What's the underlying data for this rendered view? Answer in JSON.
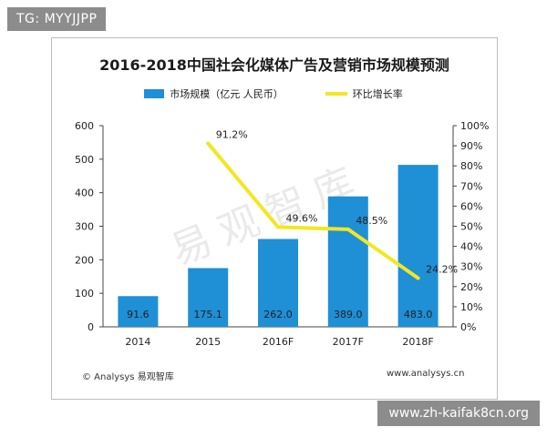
{
  "tag_top": "TG: MYYJJPP",
  "tag_bottom": "www.zh-kaifak8cn.org",
  "watermark": "易观智库",
  "footer": {
    "source": "© Analysys 易观智库",
    "url": "www.analysys.cn"
  },
  "chart_data": {
    "type": "bar",
    "title": "2016-2018中国社会化媒体广告及营销市场规模预测",
    "categories": [
      "2014",
      "2015",
      "2016F",
      "2017F",
      "2018F"
    ],
    "series": [
      {
        "name": "市场规模（亿元 人民币）",
        "kind": "bar",
        "axis": "left",
        "color": "#1f8fd6",
        "values": [
          91.6,
          175.1,
          262.0,
          389.0,
          483.0
        ],
        "labels": [
          "91.6",
          "175.1",
          "262.0",
          "389.0",
          "483.0"
        ]
      },
      {
        "name": "环比增长率",
        "kind": "line",
        "axis": "right",
        "color": "#f2e722",
        "values": [
          null,
          91.2,
          49.6,
          48.5,
          24.2
        ],
        "labels": [
          "",
          "91.2%",
          "49.6%",
          "48.5%",
          "24.2%"
        ]
      }
    ],
    "y_left": {
      "ylim": [
        0,
        600
      ],
      "ticks": [
        "0",
        "100",
        "200",
        "300",
        "400",
        "500",
        "600"
      ]
    },
    "y_right": {
      "ylim": [
        0,
        100
      ],
      "ticks": [
        "0%",
        "10%",
        "20%",
        "30%",
        "40%",
        "50%",
        "60%",
        "70%",
        "80%",
        "90%",
        "100%"
      ]
    },
    "legend": "top-center",
    "grid": false
  }
}
